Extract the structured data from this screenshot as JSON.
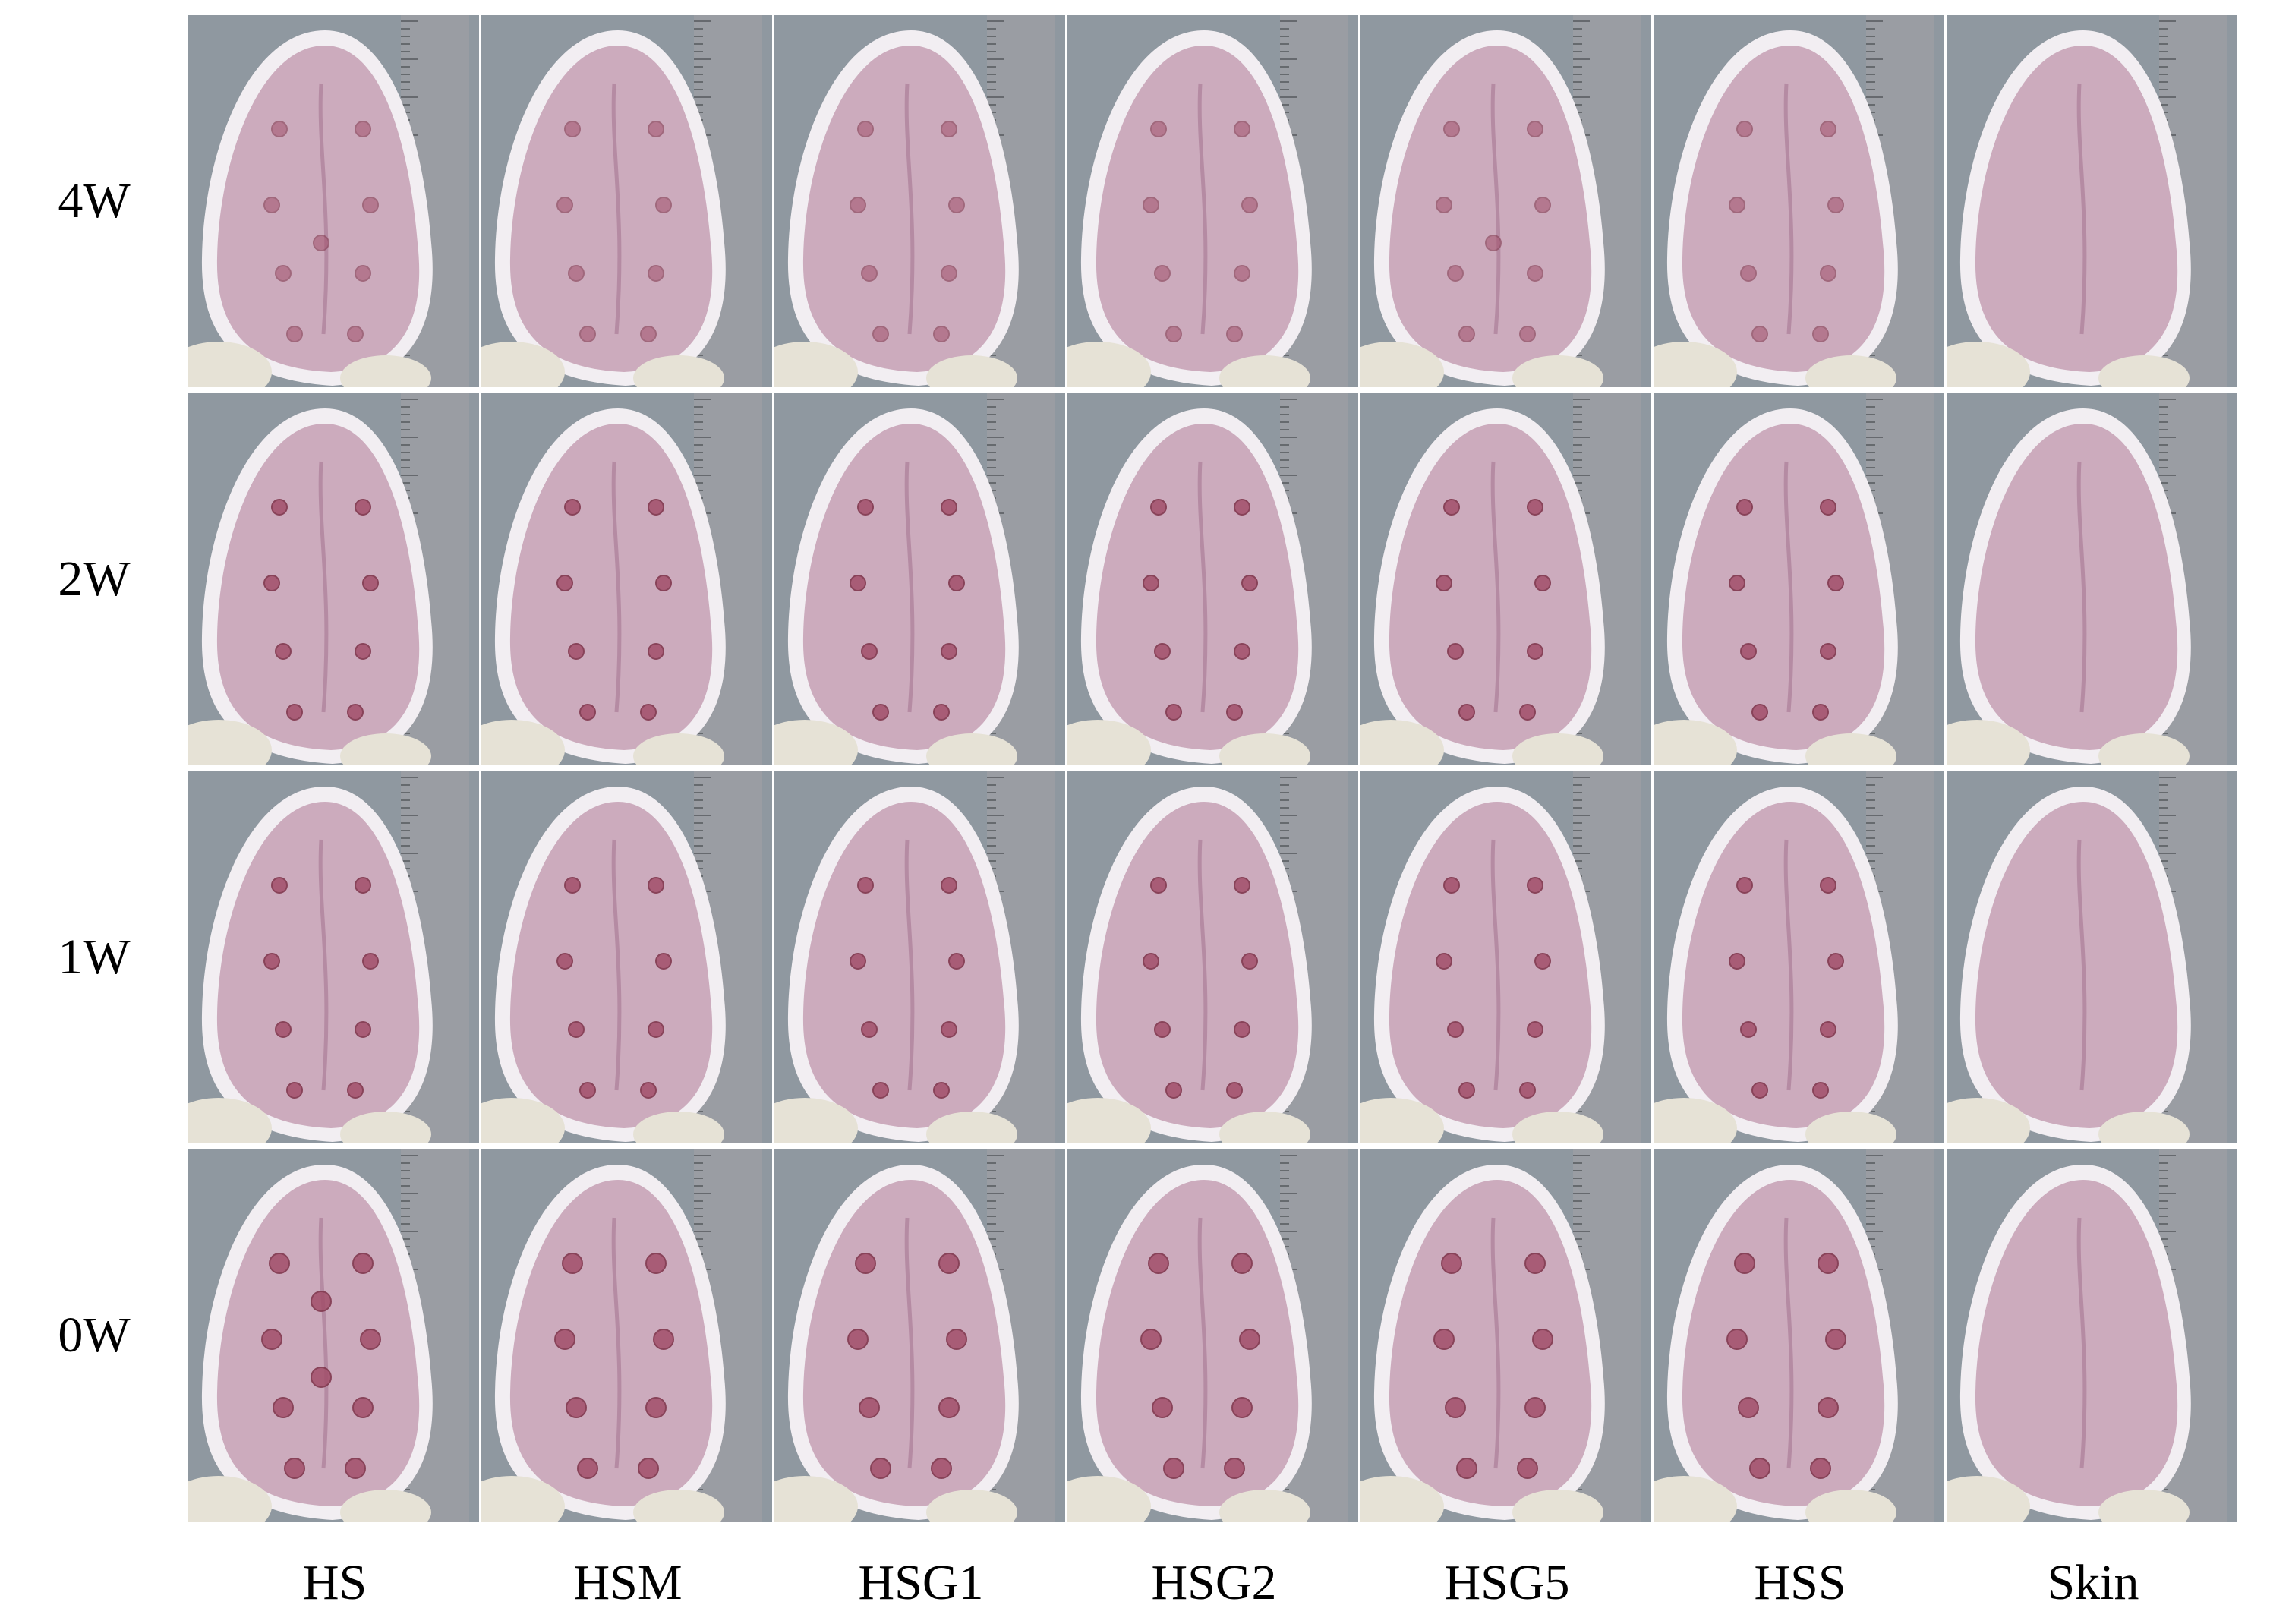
{
  "rows": [
    {
      "label": "4W"
    },
    {
      "label": "2W"
    },
    {
      "label": "1W"
    },
    {
      "label": "0W"
    }
  ],
  "columns": [
    {
      "label": "HS",
      "wounds": true
    },
    {
      "label": "HSM",
      "wounds": true
    },
    {
      "label": "HSG1",
      "wounds": true
    },
    {
      "label": "HSG2",
      "wounds": true
    },
    {
      "label": "HSG5",
      "wounds": true
    },
    {
      "label": "HSS",
      "wounds": true
    },
    {
      "label": "Skin",
      "wounds": false
    }
  ],
  "colors": {
    "background": "#ffffff",
    "ear": "#c9a6b9",
    "ear_edge": "#f2eef2",
    "wound": "#a24f6a",
    "ruler": "#9a9da3",
    "backdrop": "#8f98a0",
    "glove": "#e6e2d6"
  },
  "wound_counts": [
    [
      9,
      8,
      8,
      8,
      9,
      8,
      0
    ],
    [
      8,
      8,
      8,
      8,
      8,
      8,
      0
    ],
    [
      8,
      8,
      8,
      8,
      8,
      8,
      0
    ],
    [
      10,
      8,
      8,
      8,
      8,
      8,
      0
    ]
  ]
}
